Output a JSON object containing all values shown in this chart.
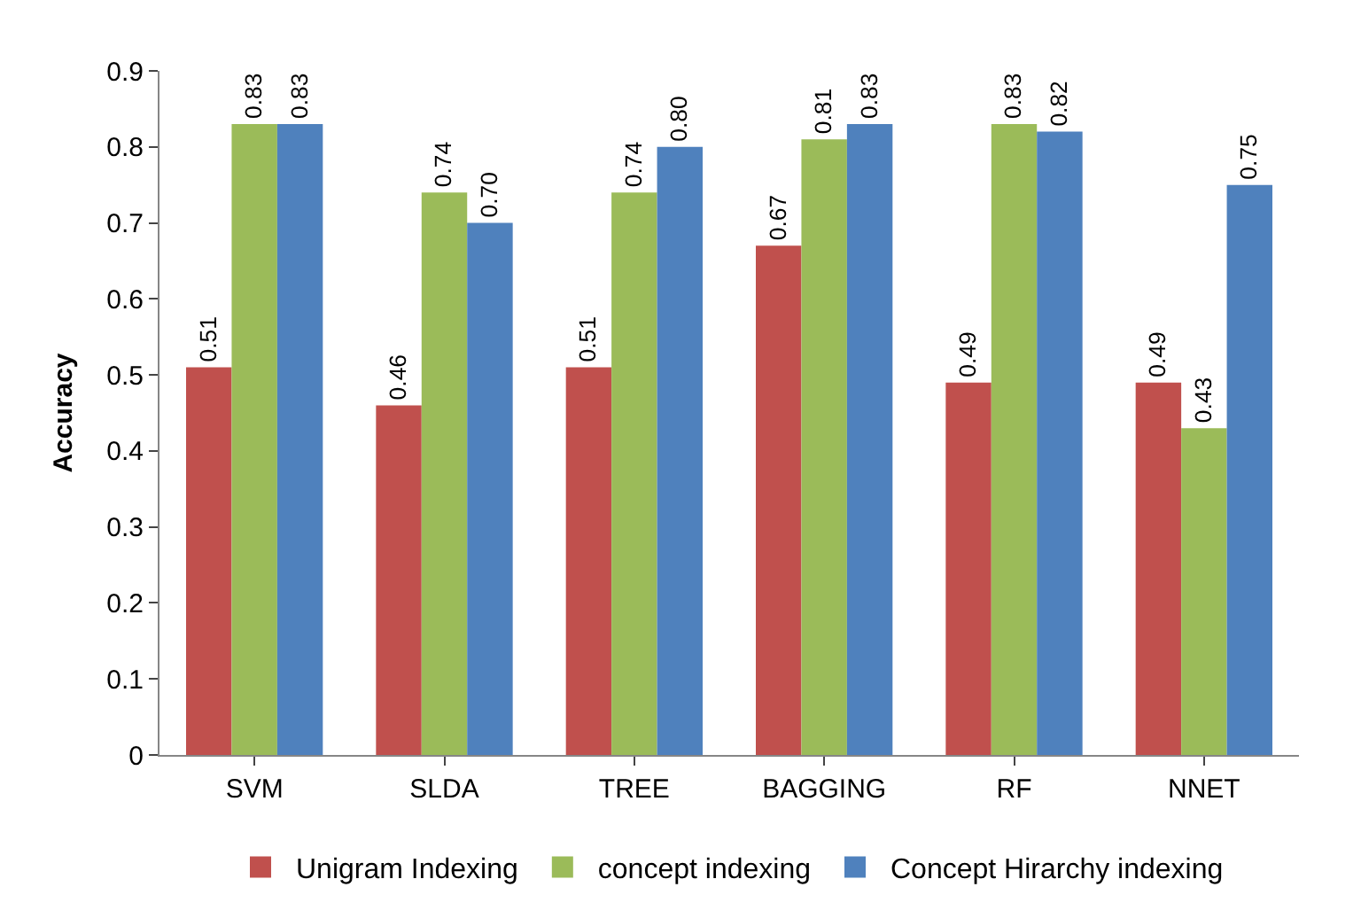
{
  "chart_data": {
    "type": "bar",
    "ylabel": "Accuracy",
    "categories": [
      "SVM",
      "SLDA",
      "TREE",
      "BAGGING",
      "RF",
      "NNET"
    ],
    "series": [
      {
        "name": "Unigram Indexing",
        "color": "#c0504d",
        "values": [
          0.51,
          0.46,
          0.51,
          0.67,
          0.49,
          0.49
        ],
        "value_labels": [
          "0.51",
          "0.46",
          "0.51",
          "0.67",
          "0.49",
          "0.49"
        ]
      },
      {
        "name": "concept indexing",
        "color": "#9bbb59",
        "values": [
          0.83,
          0.74,
          0.74,
          0.81,
          0.83,
          0.43
        ],
        "value_labels": [
          "0.83",
          "0.74",
          "0.74",
          "0.81",
          "0.83",
          "0.43"
        ]
      },
      {
        "name": "Concept Hirarchy indexing",
        "color": "#4f81bd",
        "values": [
          0.83,
          0.7,
          0.8,
          0.83,
          0.82,
          0.75
        ],
        "value_labels": [
          "0.83",
          "0.70",
          "0.80",
          "0.83",
          "0.82",
          "0.75"
        ]
      }
    ],
    "ylim": [
      0,
      0.9
    ],
    "yticks": [
      0,
      0.1,
      0.2,
      0.3,
      0.4,
      0.5,
      0.6,
      0.7,
      0.8,
      0.9
    ],
    "legend": "bottom"
  }
}
